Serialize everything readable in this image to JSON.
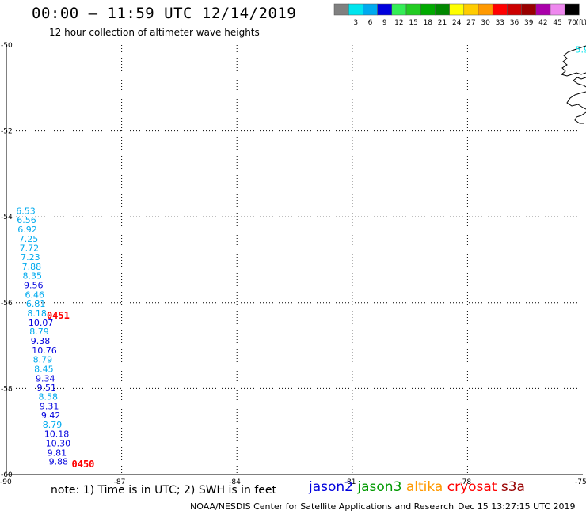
{
  "header": {
    "title": "00:00 – 11:59 UTC 12/14/2019",
    "subtitle": "12 hour collection of altimeter wave heights"
  },
  "legend": {
    "unit": "(ft)",
    "bins": [
      {
        "label": "",
        "color": "#808080"
      },
      {
        "label": "3",
        "color": "#00e5ee"
      },
      {
        "label": "6",
        "color": "#00aaee"
      },
      {
        "label": "9",
        "color": "#0000dd"
      },
      {
        "label": "12",
        "color": "#33ee55"
      },
      {
        "label": "15",
        "color": "#22cc22"
      },
      {
        "label": "18",
        "color": "#00aa00"
      },
      {
        "label": "21",
        "color": "#008800"
      },
      {
        "label": "24",
        "color": "#ffff00"
      },
      {
        "label": "27",
        "color": "#ffcc00"
      },
      {
        "label": "30",
        "color": "#ff9900"
      },
      {
        "label": "33",
        "color": "#ff0000"
      },
      {
        "label": "36",
        "color": "#cc0000"
      },
      {
        "label": "39",
        "color": "#990000"
      },
      {
        "label": "42",
        "color": "#aa00aa"
      },
      {
        "label": "45",
        "color": "#ee88ee"
      },
      {
        "label": "70",
        "color": "#000000"
      }
    ]
  },
  "chart_data": {
    "type": "scatter",
    "title": "00:00 – 11:59 UTC 12/14/2019",
    "subtitle": "12 hour collection of altimeter wave heights",
    "xlim": [
      -90,
      -75
    ],
    "ylim": [
      -60,
      -50
    ],
    "x_ticks": [
      "-90",
      "-87",
      "-84",
      "-81",
      "-78",
      "-75"
    ],
    "y_ticks": [
      "-50",
      "-52",
      "-54",
      "-56",
      "-58",
      "-60"
    ],
    "grid": true,
    "points": [
      {
        "lon": -89.87,
        "lat": -53.86,
        "value": "6.53",
        "color": "#00aaee"
      },
      {
        "lon": -89.85,
        "lat": -54.07,
        "value": "6.56",
        "color": "#00aaee"
      },
      {
        "lon": -89.83,
        "lat": -54.29,
        "value": "6.92",
        "color": "#00aaee"
      },
      {
        "lon": -89.8,
        "lat": -54.51,
        "value": "7.25",
        "color": "#00aaee"
      },
      {
        "lon": -89.78,
        "lat": -54.72,
        "value": "7.72",
        "color": "#00aaee"
      },
      {
        "lon": -89.75,
        "lat": -54.94,
        "value": "7.23",
        "color": "#00aaee"
      },
      {
        "lon": -89.72,
        "lat": -55.16,
        "value": "7.88",
        "color": "#00aaee"
      },
      {
        "lon": -89.7,
        "lat": -55.37,
        "value": "8.35",
        "color": "#00aaee"
      },
      {
        "lon": -89.67,
        "lat": -55.59,
        "value": "9.56",
        "color": "#0000dd"
      },
      {
        "lon": -89.64,
        "lat": -55.81,
        "value": "6.46",
        "color": "#00aaee"
      },
      {
        "lon": -89.61,
        "lat": -56.02,
        "value": "6.81",
        "color": "#00aaee"
      },
      {
        "lon": -89.58,
        "lat": -56.24,
        "value": "8.18",
        "color": "#00aaee"
      },
      {
        "lon": -89.55,
        "lat": -56.46,
        "value": "10.07",
        "color": "#0000dd"
      },
      {
        "lon": -89.52,
        "lat": -56.67,
        "value": "8.79",
        "color": "#00aaee"
      },
      {
        "lon": -89.49,
        "lat": -56.89,
        "value": "9.38",
        "color": "#0000dd"
      },
      {
        "lon": -89.46,
        "lat": -57.11,
        "value": "10.76",
        "color": "#0000dd"
      },
      {
        "lon": -89.43,
        "lat": -57.32,
        "value": "8.79",
        "color": "#00aaee"
      },
      {
        "lon": -89.4,
        "lat": -57.54,
        "value": "8.45",
        "color": "#00aaee"
      },
      {
        "lon": -89.36,
        "lat": -57.76,
        "value": "9.34",
        "color": "#0000dd"
      },
      {
        "lon": -89.33,
        "lat": -57.97,
        "value": "9.51",
        "color": "#0000dd"
      },
      {
        "lon": -89.29,
        "lat": -58.19,
        "value": "8.58",
        "color": "#00aaee"
      },
      {
        "lon": -89.26,
        "lat": -58.41,
        "value": "9.31",
        "color": "#0000dd"
      },
      {
        "lon": -89.22,
        "lat": -58.62,
        "value": "9.42",
        "color": "#0000dd"
      },
      {
        "lon": -89.18,
        "lat": -58.84,
        "value": "8.79",
        "color": "#00aaee"
      },
      {
        "lon": -89.14,
        "lat": -59.05,
        "value": "10.18",
        "color": "#0000dd"
      },
      {
        "lon": -89.1,
        "lat": -59.27,
        "value": "10.30",
        "color": "#0000dd"
      },
      {
        "lon": -89.06,
        "lat": -59.49,
        "value": "9.81",
        "color": "#0000dd"
      },
      {
        "lon": -89.02,
        "lat": -59.7,
        "value": "9.88",
        "color": "#0000dd"
      },
      {
        "lon": -74.95,
        "lat": -50.1,
        "value": "5.9",
        "color": "#00e5ee"
      }
    ],
    "time_labels": [
      {
        "lon": -88.95,
        "lat": -56.3,
        "text": "0451"
      },
      {
        "lon": -88.3,
        "lat": -59.76,
        "text": "0450"
      }
    ]
  },
  "footer": {
    "note": "note: 1) Time is in UTC; 2) SWH is in feet",
    "satellites": [
      {
        "name": "jason2",
        "color": "#0000dd"
      },
      {
        "name": "jason3",
        "color": "#009900"
      },
      {
        "name": "altika",
        "color": "#ff9900"
      },
      {
        "name": "cryosat",
        "color": "#ff0000"
      },
      {
        "name": "s3a",
        "color": "#990000"
      }
    ],
    "credit": "NOAA/NESDIS Center for Satellite Applications and Research",
    "timestamp": "Dec 15 13:27:15 UTC 2019"
  }
}
